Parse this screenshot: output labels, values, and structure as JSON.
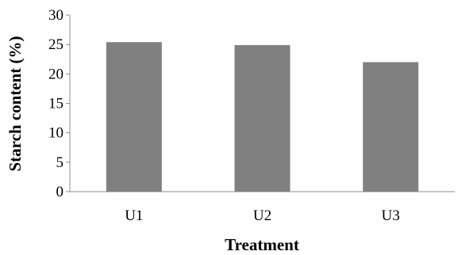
{
  "chart_data": {
    "type": "bar",
    "categories": [
      "U1",
      "U2",
      "U3"
    ],
    "values": [
      25.4,
      24.9,
      22.0
    ],
    "xlabel": "Treatment",
    "ylabel": "Starch content (%)",
    "ylim": [
      0,
      30
    ],
    "yticks": [
      0,
      5,
      10,
      15,
      20,
      25,
      30
    ],
    "grid": false,
    "colors": {
      "bar": "#808080",
      "axis": "#8c8c8c"
    }
  }
}
